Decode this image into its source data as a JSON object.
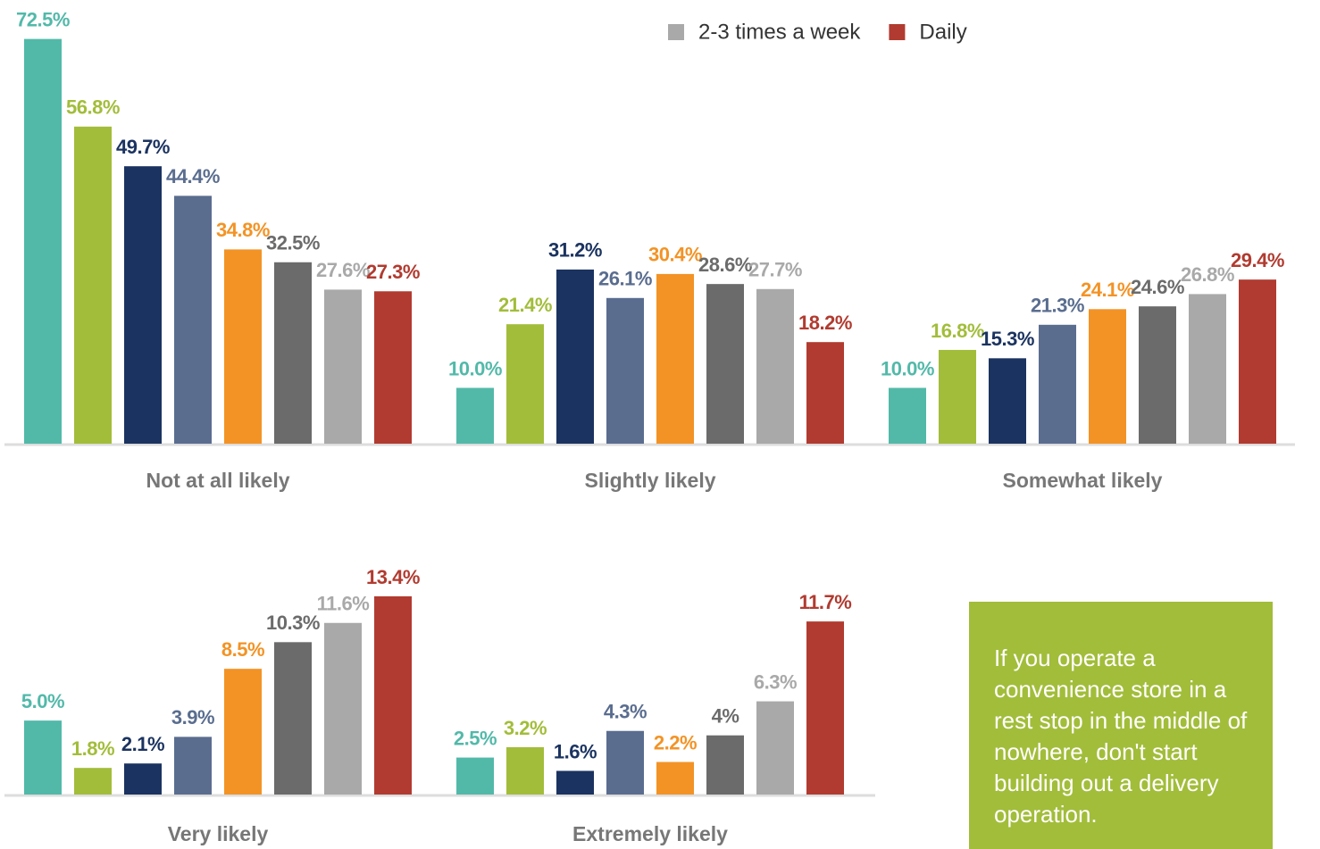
{
  "chart_data": [
    {
      "type": "bar",
      "categories": [
        "Not at all likely",
        "Slightly likely",
        "Somewhat likely"
      ],
      "ylim": [
        0,
        75
      ],
      "legend": "top",
      "series": [
        {
          "color": "#52b9a9",
          "values": [
            72.5,
            10.0,
            10.0
          ],
          "value_labels": [
            "72.5%",
            "10.0%",
            "10.0%"
          ]
        },
        {
          "color": "#a2bd3a",
          "values": [
            56.8,
            21.4,
            16.8
          ],
          "value_labels": [
            "56.8%",
            "21.4%",
            "16.8%"
          ]
        },
        {
          "color": "#1b3360",
          "values": [
            49.7,
            31.2,
            15.3
          ],
          "value_labels": [
            "49.7%",
            "31.2%",
            "15.3%"
          ]
        },
        {
          "color": "#5a6d8f",
          "values": [
            44.4,
            26.1,
            21.3
          ],
          "value_labels": [
            "44.4%",
            "26.1%",
            "21.3%"
          ]
        },
        {
          "color": "#f39325",
          "values": [
            34.8,
            30.4,
            24.1
          ],
          "value_labels": [
            "34.8%",
            "30.4%",
            "24.1%"
          ]
        },
        {
          "color": "#6a6b6a",
          "values": [
            32.5,
            28.6,
            24.6
          ],
          "value_labels": [
            "32.5%",
            "28.6%",
            "24.6%"
          ]
        },
        {
          "name": "2-3 times a week",
          "color": "#a8a9a8",
          "values": [
            27.6,
            27.7,
            26.8
          ],
          "value_labels": [
            "27.6%",
            "27.7%",
            "26.8%"
          ]
        },
        {
          "name": "Daily",
          "color": "#b13b30",
          "values": [
            27.3,
            18.2,
            29.4
          ],
          "value_labels": [
            "27.3%",
            "18.2%",
            "29.4%"
          ]
        }
      ]
    },
    {
      "type": "bar",
      "categories": [
        "Very likely",
        "Extremely likely"
      ],
      "ylim": [
        0,
        14
      ],
      "series": [
        {
          "color": "#52b9a9",
          "values": [
            5.0,
            2.5
          ],
          "value_labels": [
            "5.0%",
            "2.5%"
          ]
        },
        {
          "color": "#a2bd3a",
          "values": [
            1.8,
            3.2
          ],
          "value_labels": [
            "1.8%",
            "3.2%"
          ]
        },
        {
          "color": "#1b3360",
          "values": [
            2.1,
            1.6
          ],
          "value_labels": [
            "2.1%",
            "1.6%"
          ]
        },
        {
          "color": "#5a6d8f",
          "values": [
            3.9,
            4.3
          ],
          "value_labels": [
            "3.9%",
            "4.3%"
          ]
        },
        {
          "color": "#f39325",
          "values": [
            8.5,
            2.2
          ],
          "value_labels": [
            "8.5%",
            "2.2%"
          ]
        },
        {
          "color": "#6a6b6a",
          "values": [
            10.3,
            4
          ],
          "value_labels": [
            "10.3%",
            "4%"
          ]
        },
        {
          "color": "#a8a9a8",
          "values": [
            11.6,
            6.3
          ],
          "value_labels": [
            "11.6%",
            "6.3%"
          ]
        },
        {
          "color": "#b13b30",
          "values": [
            13.4,
            11.7
          ],
          "value_labels": [
            "13.4%",
            "11.7%"
          ]
        }
      ]
    }
  ],
  "note": {
    "text": "If you operate a convenience store in a rest stop in the middle of nowhere, don't start building out a delivery operation.",
    "color": "#a2bd3a"
  }
}
